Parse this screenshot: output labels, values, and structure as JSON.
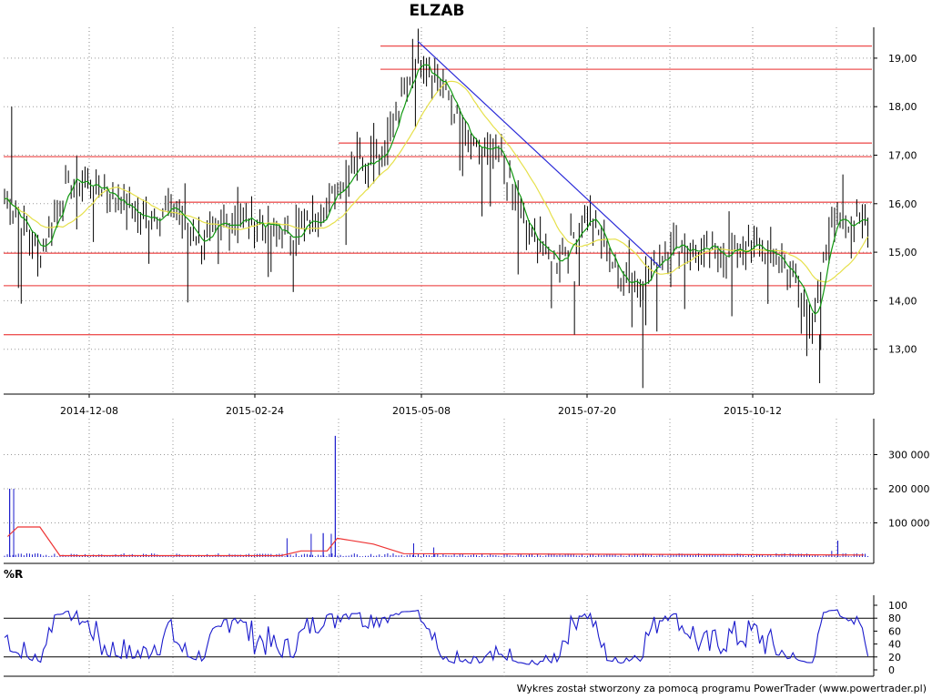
{
  "chart_title": "ELZAB",
  "footer": "Wykres został stworzony za pomocą programu PowerTrader (www.powertrader.pl)",
  "chart_data": [
    {
      "type": "ohlc",
      "panel": "price",
      "title": "ELZAB",
      "x_tick_labels": [
        "2014-12-08",
        "2015-02-24",
        "2015-05-08",
        "2015-07-20",
        "2015-10-12"
      ],
      "y_tick_labels": [
        "13,00",
        "14,00",
        "15,00",
        "16,00",
        "17,00",
        "18,00",
        "19,00"
      ],
      "ylim": [
        12.0,
        19.6
      ],
      "grid": true,
      "colors": {
        "bars": "#000000",
        "fast_ma": "#119911",
        "slow_ma": "#e6e04a",
        "horizontal_levels": "#ee5555",
        "trendline": "#2b2bd8"
      },
      "horizontal_levels": [
        19.25,
        18.77,
        17.25,
        16.97,
        16.03,
        14.98,
        14.31,
        13.3
      ],
      "trendline": {
        "from": {
          "date": "2015-05-12",
          "value": 19.35
        },
        "to": {
          "date": "2015-09-10",
          "value": 14.68
        }
      },
      "series_note": "daily high/low bars with 2 moving averages (approximate)",
      "close_anchors": [
        {
          "date": "2014-10-20",
          "value": 16.1
        },
        {
          "date": "2014-11-05",
          "value": 15.0
        },
        {
          "date": "2014-11-20",
          "value": 16.5
        },
        {
          "date": "2014-12-08",
          "value": 16.3
        },
        {
          "date": "2014-12-25",
          "value": 15.7
        },
        {
          "date": "2015-01-10",
          "value": 15.9
        },
        {
          "date": "2015-01-25",
          "value": 15.2
        },
        {
          "date": "2015-02-10",
          "value": 15.7
        },
        {
          "date": "2015-02-24",
          "value": 15.6
        },
        {
          "date": "2015-03-10",
          "value": 15.3
        },
        {
          "date": "2015-03-25",
          "value": 15.8
        },
        {
          "date": "2015-04-10",
          "value": 16.8
        },
        {
          "date": "2015-04-25",
          "value": 17.1
        },
        {
          "date": "2015-05-05",
          "value": 18.2
        },
        {
          "date": "2015-05-12",
          "value": 19.1
        },
        {
          "date": "2015-05-25",
          "value": 18.4
        },
        {
          "date": "2015-06-08",
          "value": 17.1
        },
        {
          "date": "2015-06-22",
          "value": 17.0
        },
        {
          "date": "2015-07-05",
          "value": 15.4
        },
        {
          "date": "2015-07-20",
          "value": 14.8
        },
        {
          "date": "2015-08-05",
          "value": 15.8
        },
        {
          "date": "2015-08-20",
          "value": 14.5
        },
        {
          "date": "2015-09-01",
          "value": 14.4
        },
        {
          "date": "2015-09-15",
          "value": 15.2
        },
        {
          "date": "2015-10-01",
          "value": 15.0
        },
        {
          "date": "2015-10-12",
          "value": 15.0
        },
        {
          "date": "2015-10-28",
          "value": 15.1
        },
        {
          "date": "2015-11-10",
          "value": 14.8
        },
        {
          "date": "2015-11-25",
          "value": 13.6
        },
        {
          "date": "2015-12-05",
          "value": 15.8
        },
        {
          "date": "2015-12-15",
          "value": 15.6
        }
      ]
    },
    {
      "type": "bar",
      "panel": "volume",
      "y_tick_labels": [
        "100 000",
        "200 000",
        "300 000"
      ],
      "ylim": [
        0,
        360000
      ],
      "colors": {
        "bars": "#1a1acc",
        "average": "#ee3333"
      },
      "notable_spikes": [
        {
          "date": "2014-10-21",
          "value": 200000
        },
        {
          "date": "2015-04-01",
          "value": 355000
        },
        {
          "date": "2015-03-26",
          "value": 70000
        },
        {
          "date": "2015-12-07",
          "value": 48000
        }
      ],
      "average_profile": [
        {
          "date": "2014-10-20",
          "value": 60000
        },
        {
          "date": "2014-10-25",
          "value": 88000
        },
        {
          "date": "2014-11-05",
          "value": 88000
        },
        {
          "date": "2014-11-15",
          "value": 4000
        },
        {
          "date": "2015-03-05",
          "value": 4000
        },
        {
          "date": "2015-03-15",
          "value": 18000
        },
        {
          "date": "2015-03-28",
          "value": 18000
        },
        {
          "date": "2015-04-02",
          "value": 55000
        },
        {
          "date": "2015-04-20",
          "value": 38000
        },
        {
          "date": "2015-05-05",
          "value": 10000
        },
        {
          "date": "2015-12-20",
          "value": 6000
        }
      ]
    },
    {
      "type": "line",
      "panel": "williams_r",
      "title": "%R",
      "y_tick_labels": [
        "0",
        "20",
        "40",
        "60",
        "80",
        "100"
      ],
      "ylim": [
        0,
        100
      ],
      "reference_lines": [
        20,
        80
      ],
      "colors": {
        "line": "#1a1acc"
      },
      "series_note": "oscillator 0-100 (approximate shape)"
    }
  ]
}
